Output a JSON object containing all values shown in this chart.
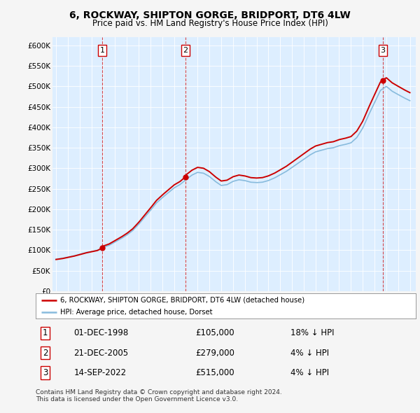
{
  "title": "6, ROCKWAY, SHIPTON GORGE, BRIDPORT, DT6 4LW",
  "subtitle": "Price paid vs. HM Land Registry's House Price Index (HPI)",
  "ylim": [
    0,
    620000
  ],
  "yticks": [
    0,
    50000,
    100000,
    150000,
    200000,
    250000,
    300000,
    350000,
    400000,
    450000,
    500000,
    550000,
    600000
  ],
  "ytick_labels": [
    "£0",
    "£50K",
    "£100K",
    "£150K",
    "£200K",
    "£250K",
    "£300K",
    "£350K",
    "£400K",
    "£450K",
    "£500K",
    "£550K",
    "£600K"
  ],
  "sale_dates": [
    1998.92,
    2005.97,
    2022.71
  ],
  "sale_prices": [
    105000,
    279000,
    515000
  ],
  "sale_labels": [
    "1",
    "2",
    "3"
  ],
  "hpi_color": "#88bbdd",
  "price_color": "#cc0000",
  "legend_label_price": "6, ROCKWAY, SHIPTON GORGE, BRIDPORT, DT6 4LW (detached house)",
  "legend_label_hpi": "HPI: Average price, detached house, Dorset",
  "table_data": [
    [
      "1",
      "01-DEC-1998",
      "£105,000",
      "18% ↓ HPI"
    ],
    [
      "2",
      "21-DEC-2005",
      "£279,000",
      "4% ↓ HPI"
    ],
    [
      "3",
      "14-SEP-2022",
      "£515,000",
      "4% ↓ HPI"
    ]
  ],
  "footnote": "Contains HM Land Registry data © Crown copyright and database right 2024.\nThis data is licensed under the Open Government Licence v3.0.",
  "background_color": "#f5f5f5",
  "plot_bg_color": "#ddeeff"
}
